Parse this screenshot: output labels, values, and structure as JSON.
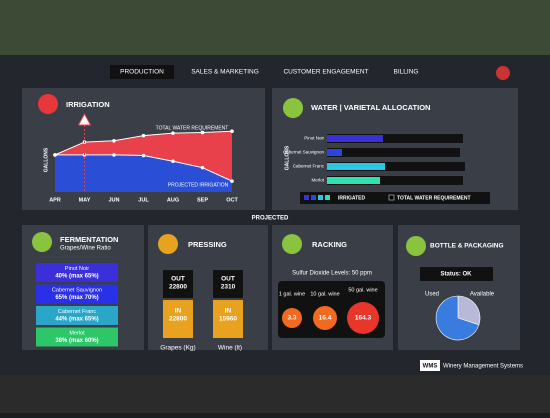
{
  "nav": {
    "items": [
      "PRODUCTION",
      "SALES & MARKETING",
      "CUSTOMER ENGAGEMENT",
      "BILLING"
    ],
    "active": 0
  },
  "irrigation": {
    "title": "IRRIGATION",
    "y_label": "GALLONS",
    "categories": [
      "APR",
      "MAY",
      "JUN",
      "JUL",
      "AUG",
      "SEP",
      "OCT"
    ],
    "series": [
      {
        "name": "TOTAL WATER REQUIREMENT",
        "color": "#e8414b",
        "values": [
          58,
          78,
          80,
          88,
          92,
          93,
          95
        ]
      },
      {
        "name": "PROJECTED IRRIGATION",
        "color": "#2a4fd6",
        "values": [
          58,
          58,
          58,
          57,
          48,
          38,
          17
        ]
      }
    ],
    "ylim": [
      0,
      100
    ]
  },
  "water": {
    "title": "WATER | VARIETAL ALLOCATION",
    "y_label": "GALLONS",
    "categories": [
      "Pinot Noir",
      "Cabernet Sauvignon",
      "Cabernet Franc",
      "Merlot"
    ],
    "series": [
      {
        "name": "IRRIGATED",
        "colors": [
          "#3b2fd6",
          "#2a45e0",
          "#2bc6e0",
          "#30e0b0"
        ],
        "values": [
          56,
          15,
          58,
          53
        ]
      },
      {
        "name": "TOTAL WATER REQUIREMENT",
        "color": "#111111",
        "values": [
          136,
          133,
          138,
          136
        ]
      }
    ],
    "xlim": [
      0,
      140
    ]
  },
  "divider_label": "PROJECTED",
  "fermentation": {
    "title": "FERMENTATION",
    "subtitle": "Grapes/Wine Ratio",
    "items": [
      {
        "name": "Pinot Noir",
        "ratio": "40% (max 65%)",
        "color": "#3a2fd8"
      },
      {
        "name": "Cabernet Sauvignon",
        "ratio": "65% (max 70%)",
        "color": "#2a2fe8"
      },
      {
        "name": "Cabernet Franc",
        "ratio": "44% (max 65%)",
        "color": "#2aa6c8"
      },
      {
        "name": "Merlot",
        "ratio": "38% (max 60%)",
        "color": "#2dc76a"
      }
    ]
  },
  "pressing": {
    "title": "PRESSING",
    "out_label": "OUT",
    "in_label": "IN",
    "groups": [
      {
        "label": "Grapes (Kg)",
        "out": 22800,
        "in": 22800
      },
      {
        "label": "Wine (lt)",
        "out": 2310,
        "in": 15960
      }
    ]
  },
  "racking": {
    "title": "RACKING",
    "subtitle": "Sulfur Dioxide Levels: 50 ppm",
    "items": [
      {
        "label": "1 gal. wine",
        "value": 3.3,
        "color": "#f26a1f"
      },
      {
        "label": "10 gal. wine",
        "value": 16.4,
        "color": "#f26a1f"
      },
      {
        "label": "50 gal. wine",
        "value": 164.3,
        "color": "#e8362a"
      }
    ]
  },
  "bottling": {
    "title": "BOTTLE & PACKAGING",
    "status": "Status: OK",
    "pie": {
      "type": "pie",
      "categories": [
        "Used",
        "Available"
      ],
      "values": [
        70,
        30
      ],
      "colors": [
        "#3a7be0",
        "#b8b8d8"
      ]
    }
  },
  "footer": {
    "logo": "WMS",
    "name": "Winery Management Systems"
  }
}
